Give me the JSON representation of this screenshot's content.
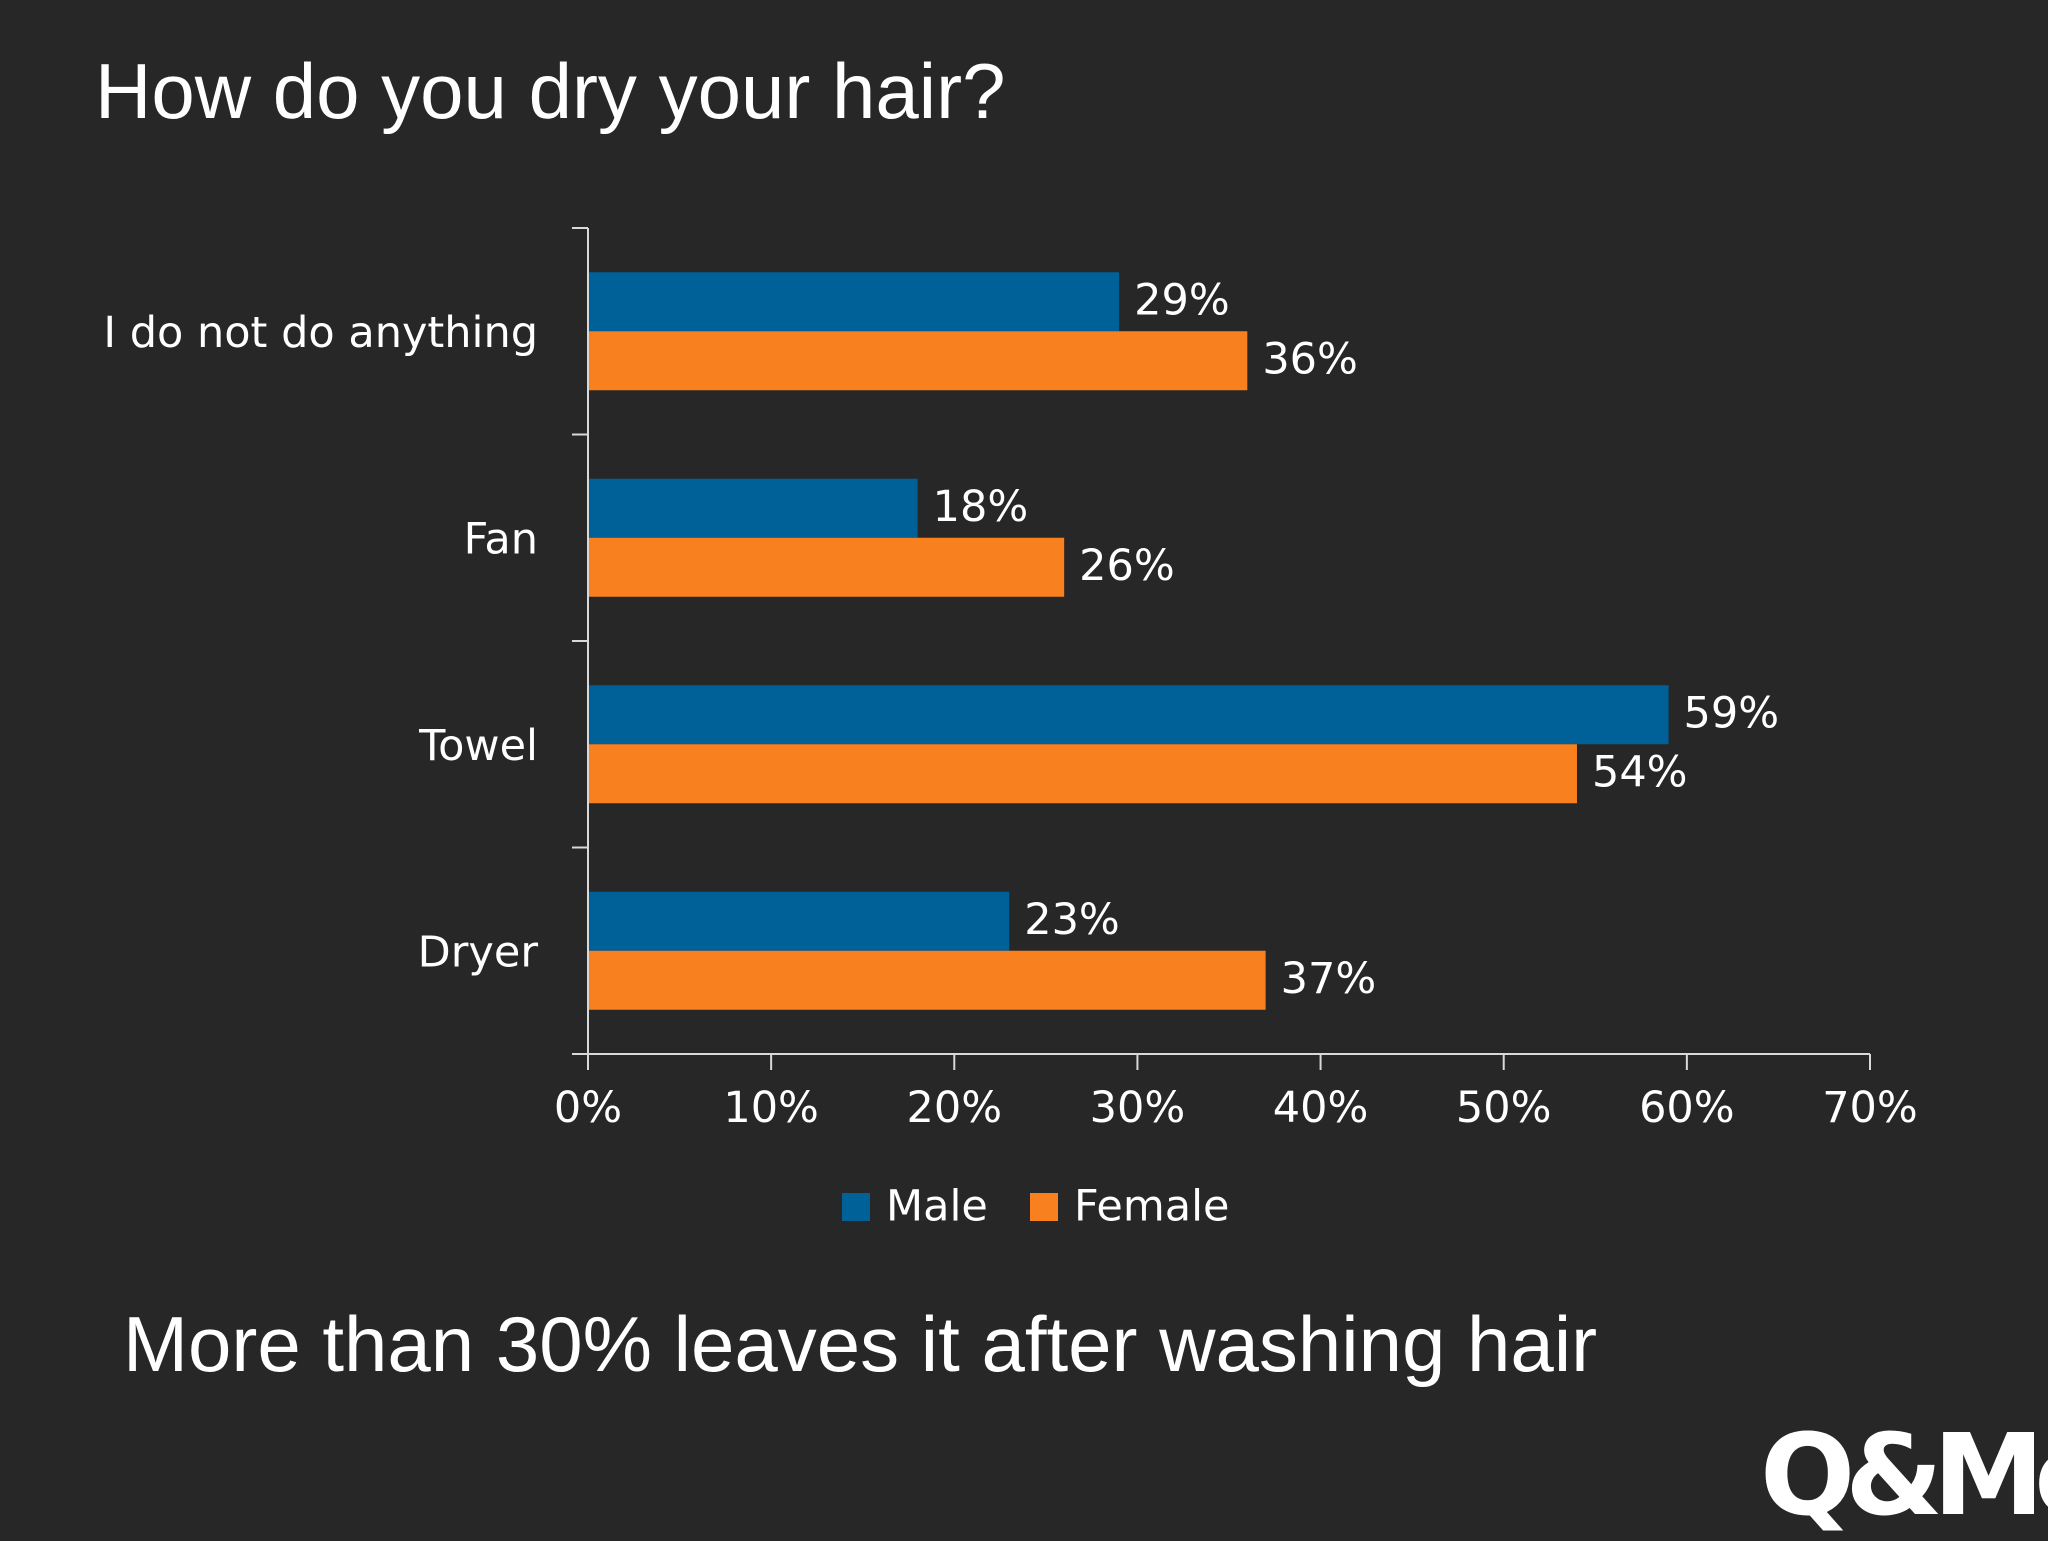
{
  "slide": {
    "title": "How do you dry your hair?",
    "subtitle": "More than 30% leaves it after washing hair",
    "logo_text": "Q&Me"
  },
  "chart_data": {
    "type": "bar",
    "orientation": "horizontal",
    "categories": [
      "I do not do anything",
      "Fan",
      "Towel",
      "Dryer"
    ],
    "series": [
      {
        "name": "Male",
        "color": "#006098",
        "values": [
          29,
          18,
          59,
          23
        ],
        "labels": [
          "29%",
          "18%",
          "59%",
          "23%"
        ]
      },
      {
        "name": "Female",
        "color": "#F8801F",
        "values": [
          36,
          26,
          54,
          37
        ],
        "labels": [
          "36%",
          "26%",
          "54%",
          "37%"
        ]
      }
    ],
    "xlim": [
      0,
      70
    ],
    "xticks": [
      0,
      10,
      20,
      30,
      40,
      50,
      60,
      70
    ],
    "xtick_labels": [
      "0%",
      "10%",
      "20%",
      "30%",
      "40%",
      "50%",
      "60%",
      "70%"
    ],
    "grid": false,
    "legend": "bottom"
  }
}
